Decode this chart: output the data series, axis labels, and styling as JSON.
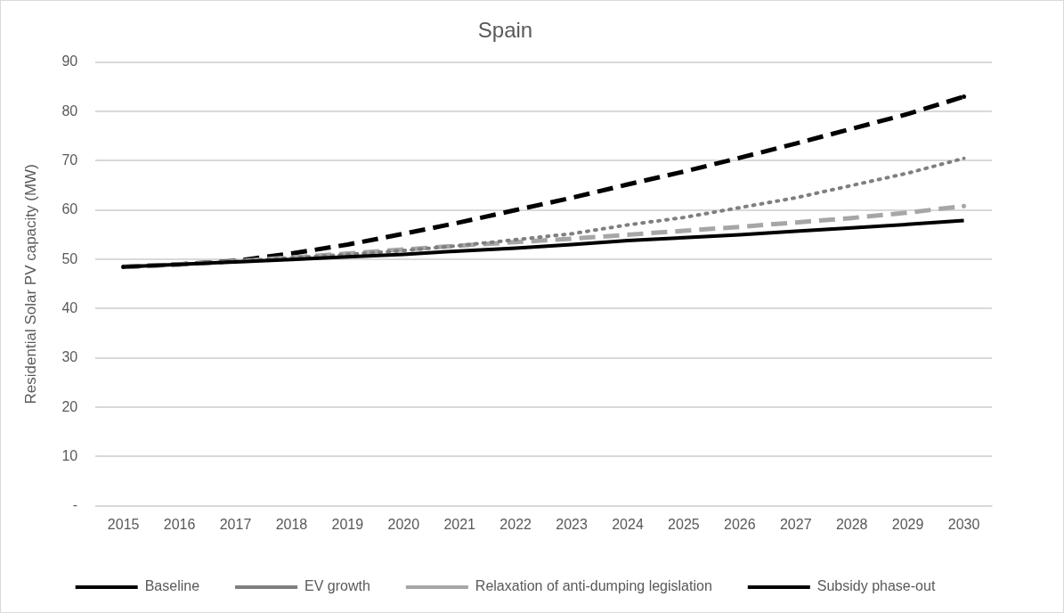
{
  "chart_data": {
    "type": "line",
    "title": "Spain",
    "ylabel": "Residential Solar PV capacity (MW)",
    "categories": [
      "2015",
      "2016",
      "2017",
      "2018",
      "2019",
      "2020",
      "2021",
      "2022",
      "2023",
      "2024",
      "2025",
      "2026",
      "2027",
      "2028",
      "2029",
      "2030"
    ],
    "ylim": [
      0,
      90
    ],
    "yticks": [
      {
        "value": 0,
        "label": "-"
      },
      10,
      20,
      30,
      40,
      50,
      60,
      70,
      80,
      90
    ],
    "grid": "y",
    "legend": "bottom",
    "marker": "none",
    "series": [
      {
        "name": "Baseline",
        "color": "#000000",
        "line_style": "solid",
        "values": [
          48.5,
          49,
          49.5,
          50,
          50.5,
          51,
          51.7,
          52.3,
          53,
          53.8,
          54.4,
          55,
          55.7,
          56.4,
          57.1,
          57.9
        ]
      },
      {
        "name": "EV growth",
        "color": "#7f7f7f",
        "line_style": "dotted",
        "values": [
          48.5,
          49,
          49.6,
          50.3,
          51,
          51.8,
          52.8,
          54,
          55.2,
          57,
          58.5,
          60.5,
          62.5,
          65,
          67.5,
          70.5
        ]
      },
      {
        "name": "Relaxation of anti-dumping legislation",
        "color": "#a6a6a6",
        "line_style": "dashed",
        "values": [
          48.5,
          49,
          49.6,
          50.4,
          51.2,
          52,
          52.8,
          53.5,
          54.2,
          55,
          55.8,
          56.6,
          57.5,
          58.4,
          59.5,
          60.8
        ]
      },
      {
        "name": "Subsidy phase-out",
        "color": "#000000",
        "line_style": "dashed",
        "values": [
          48.5,
          49,
          49.7,
          51.2,
          53,
          55.2,
          57.5,
          60,
          62.5,
          65.2,
          67.8,
          70.6,
          73.5,
          76.5,
          79.5,
          83
        ]
      }
    ]
  }
}
